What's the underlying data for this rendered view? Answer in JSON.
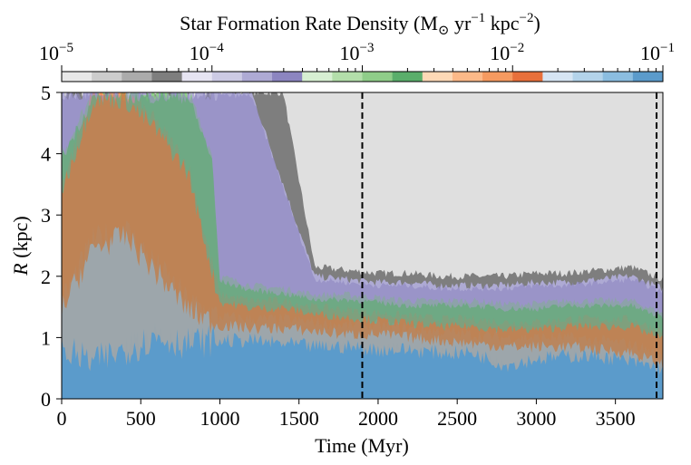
{
  "chart_data": {
    "type": "heatmap",
    "title": "",
    "xlabel": "Time (Myr)",
    "ylabel_italic": "R",
    "ylabel_rest": " (kpc)",
    "xlim": [
      0,
      3800
    ],
    "ylim": [
      0,
      5
    ],
    "x_ticks": [
      "0",
      "500",
      "1000",
      "1500",
      "2000",
      "2500",
      "3000",
      "3500"
    ],
    "x_tick_values": [
      0,
      500,
      1000,
      1500,
      2000,
      2500,
      3000,
      3500
    ],
    "y_ticks": [
      "0",
      "1",
      "2",
      "3",
      "4",
      "5"
    ],
    "y_tick_values": [
      0,
      1,
      2,
      3,
      4,
      5
    ],
    "vertical_lines": [
      1900,
      3760
    ],
    "grid": false,
    "colorbar": {
      "label_main": "Star Formation Rate Density (M",
      "label_sun": "⊙",
      "label_yr": " yr",
      "label_yr_exp": "−1",
      "label_kpc": " kpc",
      "label_kpc_exp": "−2",
      "label_close": ")",
      "scale": "log",
      "range": [
        1e-05,
        0.1
      ],
      "placement": "top",
      "ticks": [
        {
          "value": 1e-05,
          "base": "10",
          "exp": "−5"
        },
        {
          "value": 0.0001,
          "base": "10",
          "exp": "−4"
        },
        {
          "value": 0.001,
          "base": "10",
          "exp": "−3"
        },
        {
          "value": 0.01,
          "base": "10",
          "exp": "−2"
        },
        {
          "value": 0.1,
          "base": "10",
          "exp": "−1"
        }
      ],
      "colors": [
        "#e8e8e8",
        "#cccccc",
        "#ababab",
        "#7e7e7e",
        "#e6e4f2",
        "#cccae4",
        "#aeaad4",
        "#8c85c0",
        "#d7efd2",
        "#b3deaa",
        "#8fcd89",
        "#5aae6b",
        "#fdd9b6",
        "#fcb988",
        "#f59a60",
        "#e8703b",
        "#d6e5f3",
        "#b3d3ea",
        "#8bbde0",
        "#5b9bcb"
      ]
    },
    "series_boundaries": [
      {
        "name": "",
        "time": [
          0,
          200,
          400,
          600,
          800,
          950,
          1000,
          1200,
          1400,
          1600,
          1800,
          2000,
          2200,
          2400,
          2600,
          2800,
          3000,
          3200,
          3400,
          3600,
          3800
        ],
        "blue_dark_top": [
          0.8,
          0.6,
          0.8,
          1.0,
          0.9,
          0.95,
          0.95,
          0.95,
          0.9,
          0.85,
          0.85,
          0.8,
          0.8,
          0.75,
          0.75,
          0.55,
          0.65,
          0.7,
          0.7,
          0.6,
          0.5
        ],
        "blue_top": [
          1.6,
          2.6,
          2.8,
          2.2,
          1.6,
          1.4,
          1.35,
          1.3,
          1.3,
          1.25,
          1.2,
          1.2,
          1.15,
          1.1,
          1.05,
          1.0,
          1.0,
          1.0,
          0.95,
          0.9,
          0.7
        ],
        "orange_top": [
          3.5,
          5.0,
          5.0,
          4.5,
          3.8,
          2.2,
          1.7,
          1.6,
          1.6,
          1.5,
          1.45,
          1.4,
          1.35,
          1.3,
          1.3,
          1.25,
          1.25,
          1.3,
          1.3,
          1.3,
          1.1
        ],
        "green_top": [
          4.0,
          5.0,
          5.0,
          5.0,
          5.0,
          4.0,
          2.0,
          1.85,
          1.8,
          1.7,
          1.7,
          1.65,
          1.6,
          1.6,
          1.6,
          1.55,
          1.55,
          1.6,
          1.6,
          1.6,
          1.4
        ],
        "purple_top": [
          5.0,
          5.0,
          5.0,
          5.0,
          5.0,
          5.0,
          5.0,
          5.0,
          3.5,
          2.0,
          1.95,
          1.9,
          1.9,
          1.85,
          1.85,
          1.85,
          1.9,
          1.9,
          1.95,
          2.0,
          1.8
        ],
        "gray_top": [
          5.0,
          5.0,
          5.0,
          5.0,
          5.0,
          5.0,
          5.0,
          5.0,
          5.0,
          2.15,
          2.1,
          2.05,
          2.05,
          2.0,
          2.0,
          2.0,
          2.05,
          2.05,
          2.1,
          2.15,
          1.95
        ]
      }
    ]
  }
}
